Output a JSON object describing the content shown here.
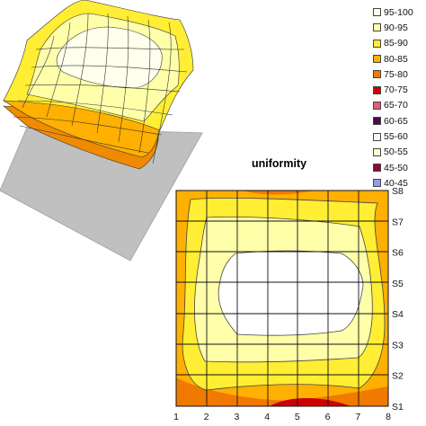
{
  "chart_data": [
    {
      "type": "surface",
      "legend": {
        "position": "right",
        "entries": [
          {
            "label": "95-100",
            "color": "#ffffee"
          },
          {
            "label": "90-95",
            "color": "#ffffaa"
          },
          {
            "label": "85-90",
            "color": "#ffee33"
          },
          {
            "label": "80-85",
            "color": "#ffb000"
          },
          {
            "label": "75-80",
            "color": "#f07a00"
          },
          {
            "label": "70-75",
            "color": "#cc0000"
          },
          {
            "label": "65-70",
            "color": "#e85a78"
          },
          {
            "label": "60-65",
            "color": "#4a0a4a"
          },
          {
            "label": "55-60",
            "color": "#f0f8ff"
          },
          {
            "label": "50-55",
            "color": "#ffffcc"
          },
          {
            "label": "45-50",
            "color": "#8a0a3a"
          },
          {
            "label": "40-45",
            "color": "#8f9fe8"
          }
        ]
      },
      "floor_color": "#c0c0c0"
    },
    {
      "type": "contour",
      "title": "uniformity",
      "x": [
        1,
        2,
        3,
        4,
        5,
        6,
        7,
        8
      ],
      "y_categories": [
        "S1",
        "S2",
        "S3",
        "S4",
        "S5",
        "S6",
        "S7",
        "S8"
      ],
      "grid": true,
      "z_bands": {
        "inner_plateau": "95-100",
        "ring_1": "90-95",
        "ring_2": "85-90",
        "edges": "80-85",
        "bottom_edge_spots": "75-80",
        "bottom_edge_min": "70-75"
      }
    }
  ]
}
